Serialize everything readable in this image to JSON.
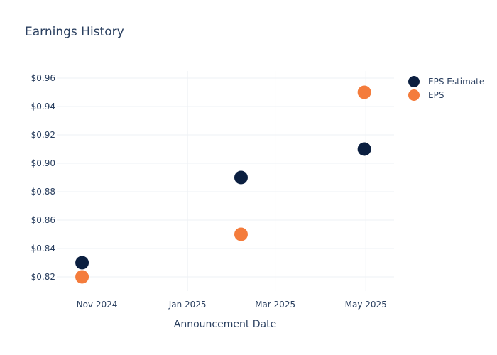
{
  "chart_data": {
    "type": "scatter",
    "title": "Earnings History",
    "xlabel": "Announcement Date",
    "ylabel": "",
    "ylim": [
      0.81,
      0.965
    ],
    "xlim": [
      "2024-10-05",
      "2025-05-20"
    ],
    "x_ticks": [
      {
        "date": "2024-11-01",
        "label": "Nov 2024"
      },
      {
        "date": "2025-01-01",
        "label": "Jan 2025"
      },
      {
        "date": "2025-03-01",
        "label": "Mar 2025"
      },
      {
        "date": "2025-05-01",
        "label": "May 2025"
      }
    ],
    "y_ticks": [
      {
        "value": 0.82,
        "label": "$0.82"
      },
      {
        "value": 0.84,
        "label": "$0.84"
      },
      {
        "value": 0.86,
        "label": "$0.86"
      },
      {
        "value": 0.88,
        "label": "$0.88"
      },
      {
        "value": 0.9,
        "label": "$0.90"
      },
      {
        "value": 0.92,
        "label": "$0.92"
      },
      {
        "value": 0.94,
        "label": "$0.94"
      },
      {
        "value": 0.96,
        "label": "$0.96"
      }
    ],
    "grid": true,
    "legend_position": "right",
    "series": [
      {
        "name": "EPS Estimate",
        "color": "#0b1f40",
        "points": [
          {
            "x": "2024-10-22",
            "y": 0.83
          },
          {
            "x": "2025-02-06",
            "y": 0.89
          },
          {
            "x": "2025-04-30",
            "y": 0.91
          }
        ]
      },
      {
        "name": "EPS",
        "color": "#f47c3c",
        "points": [
          {
            "x": "2024-10-22",
            "y": 0.82
          },
          {
            "x": "2025-02-06",
            "y": 0.85
          },
          {
            "x": "2025-04-30",
            "y": 0.95
          }
        ]
      }
    ]
  }
}
